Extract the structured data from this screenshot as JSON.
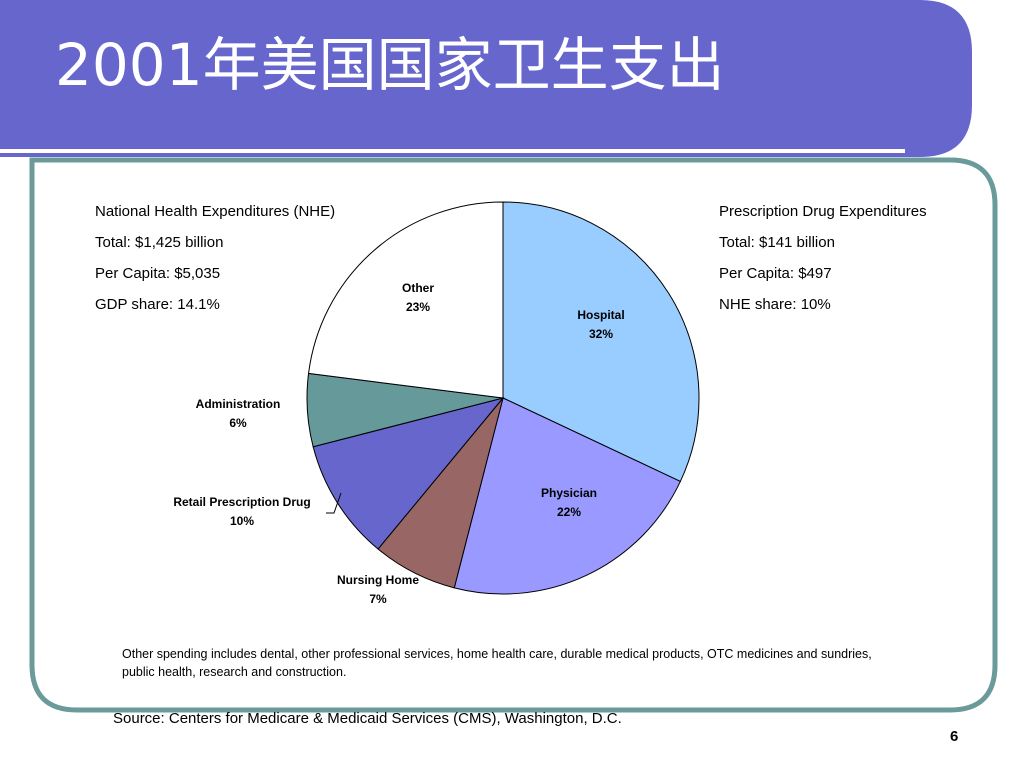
{
  "slide": {
    "title": "2001年美国国家卫生支出",
    "colors": {
      "title_bar": "#6666cc",
      "frame": "#6a9a9a",
      "accent_line": "#ffffff"
    },
    "nhe": {
      "heading": "National Health Expenditures (NHE)",
      "total": "Total: $1,425 billion",
      "per_capita": "Per Capita:  $5,035",
      "gdp_share": "GDP share: 14.1%"
    },
    "rx": {
      "heading": "Prescription Drug Expenditures",
      "total": "Total: $141 billion",
      "per_capita": "Per Capita: $497",
      "nhe_share": "NHE share: 10%"
    },
    "footnote": "Other spending includes dental, other professional services, home health care, durable medical products, OTC medicines and sundries, public health, research and construction.",
    "source": "Source:  Centers for Medicare & Medicaid Services (CMS), Washington, D.C.",
    "page_number": "6"
  },
  "chart_data": {
    "type": "pie",
    "title": "",
    "start_angle_deg": 0,
    "direction": "clockwise",
    "slices": [
      {
        "name": "Hospital",
        "value": 32,
        "label": "32%",
        "color": "#99ccff"
      },
      {
        "name": "Physician",
        "value": 22,
        "label": "22%",
        "color": "#9999ff"
      },
      {
        "name": "Nursing Home",
        "value": 7,
        "label": "7%",
        "color": "#996666"
      },
      {
        "name": "Retail Prescription Drug",
        "value": 10,
        "label": "10%",
        "color": "#6666cc"
      },
      {
        "name": "Administration",
        "value": 6,
        "label": "6%",
        "color": "#669999"
      },
      {
        "name": "Other",
        "value": 23,
        "label": "23%",
        "color": "#ffffff"
      }
    ]
  }
}
